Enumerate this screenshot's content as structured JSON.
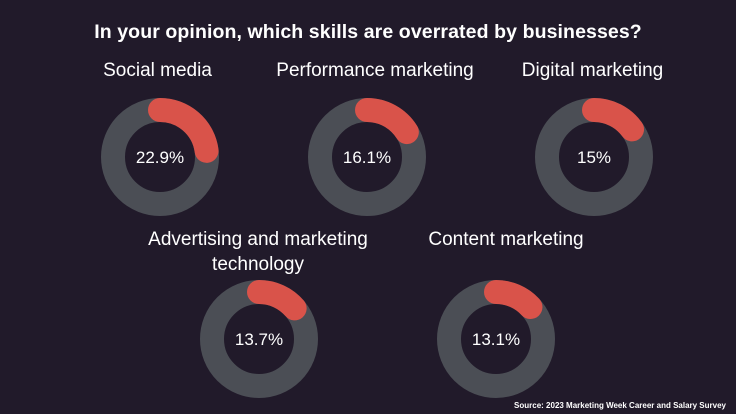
{
  "title": "In your opinion, which skills are overrated by businesses?",
  "source": "Source: 2023 Marketing Week Career and Salary Survey",
  "colors": {
    "background": "#211a2a",
    "track": "#4b4e55",
    "value": "#d9534a",
    "text": "#ffffff"
  },
  "chart_data": {
    "type": "pie",
    "title": "In your opinion, which skills are overrated by businesses?",
    "unit": "%",
    "categories": [
      "Social media",
      "Performance marketing",
      "Digital marketing",
      "Advertising and marketing technology",
      "Content marketing"
    ],
    "values": [
      22.9,
      16.1,
      15,
      13.7,
      13.1
    ],
    "value_labels": [
      "22.9%",
      "16.1%",
      "15%",
      "13.7%",
      "13.1%"
    ]
  }
}
